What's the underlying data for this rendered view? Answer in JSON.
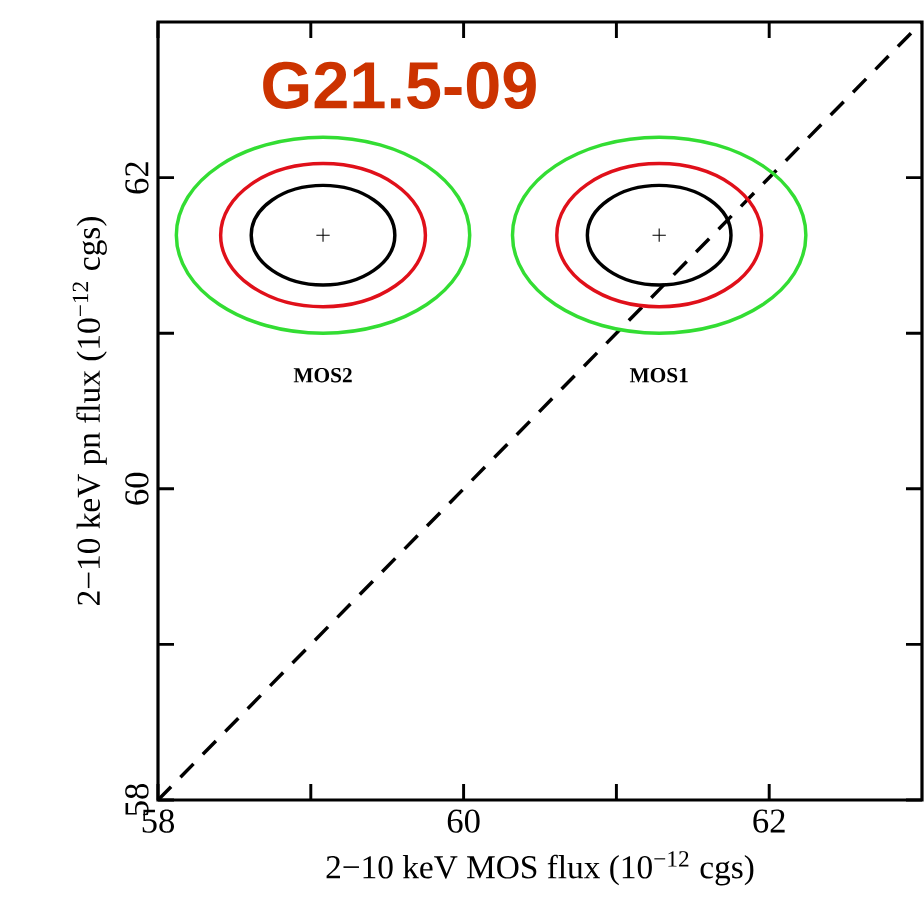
{
  "chart_data": {
    "type": "scatter",
    "title": "G21.5-09",
    "xlabel": "2−10 keV MOS flux (10$^{−12}$ cgs)",
    "ylabel": "2−10 keV pn flux (10$^{−12}$ cgs)",
    "xlim": [
      58,
      63
    ],
    "ylim": [
      58,
      63
    ],
    "xticks": [
      58,
      {
        "value": 59,
        "label": null
      },
      60,
      {
        "value": 61,
        "label": null
      },
      62
    ],
    "yticks": [
      58,
      {
        "value": 59,
        "label": null
      },
      60,
      {
        "value": 61,
        "label": null
      },
      62
    ],
    "grid": false,
    "series": [
      {
        "type": "line",
        "line_style": "dashed",
        "color": "#000000",
        "x": [
          58,
          63
        ],
        "values": [
          58,
          63
        ]
      },
      {
        "color": "#000000",
        "x": [
          59.08,
          61.28
        ],
        "values": [
          61.63,
          61.63
        ]
      }
    ],
    "annotations": [
      "MOS2",
      "MOS1"
    ]
  }
}
